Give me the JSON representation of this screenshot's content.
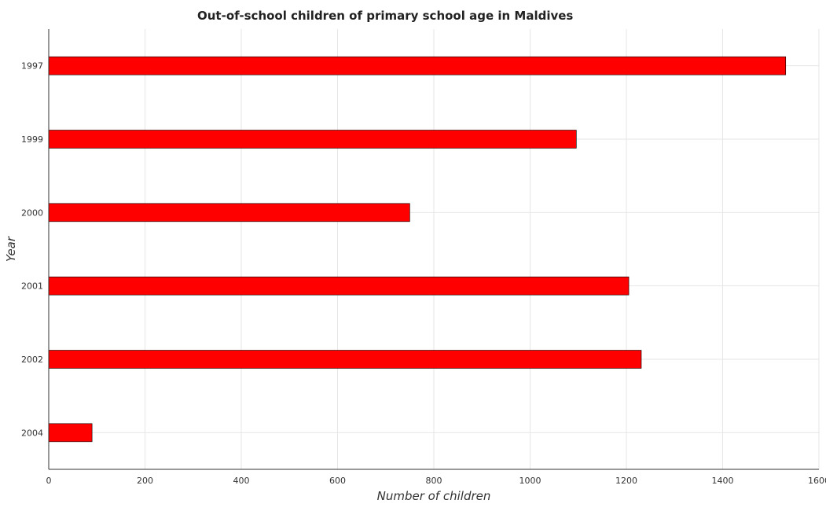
{
  "chart_data": {
    "type": "bar",
    "orientation": "horizontal",
    "title": "Out-of-school children of primary school age in Maldives",
    "xlabel": "Number of children",
    "ylabel": "Year",
    "categories": [
      "1997",
      "1999",
      "2000",
      "2001",
      "2002",
      "2004"
    ],
    "series": [
      {
        "values": [
          1531,
          1096,
          750,
          1205,
          1231,
          90
        ]
      }
    ],
    "xlim": [
      0,
      1600
    ],
    "xticks": [
      0,
      200,
      400,
      600,
      800,
      1000,
      1200,
      1400,
      1600
    ],
    "xtick_labels": [
      "0",
      "200",
      "400",
      "600",
      "800",
      "1000",
      "1200",
      "1400",
      "1600"
    ],
    "grid": true,
    "bar_color": "#ff0000",
    "bar_edge_color": "#000000"
  }
}
